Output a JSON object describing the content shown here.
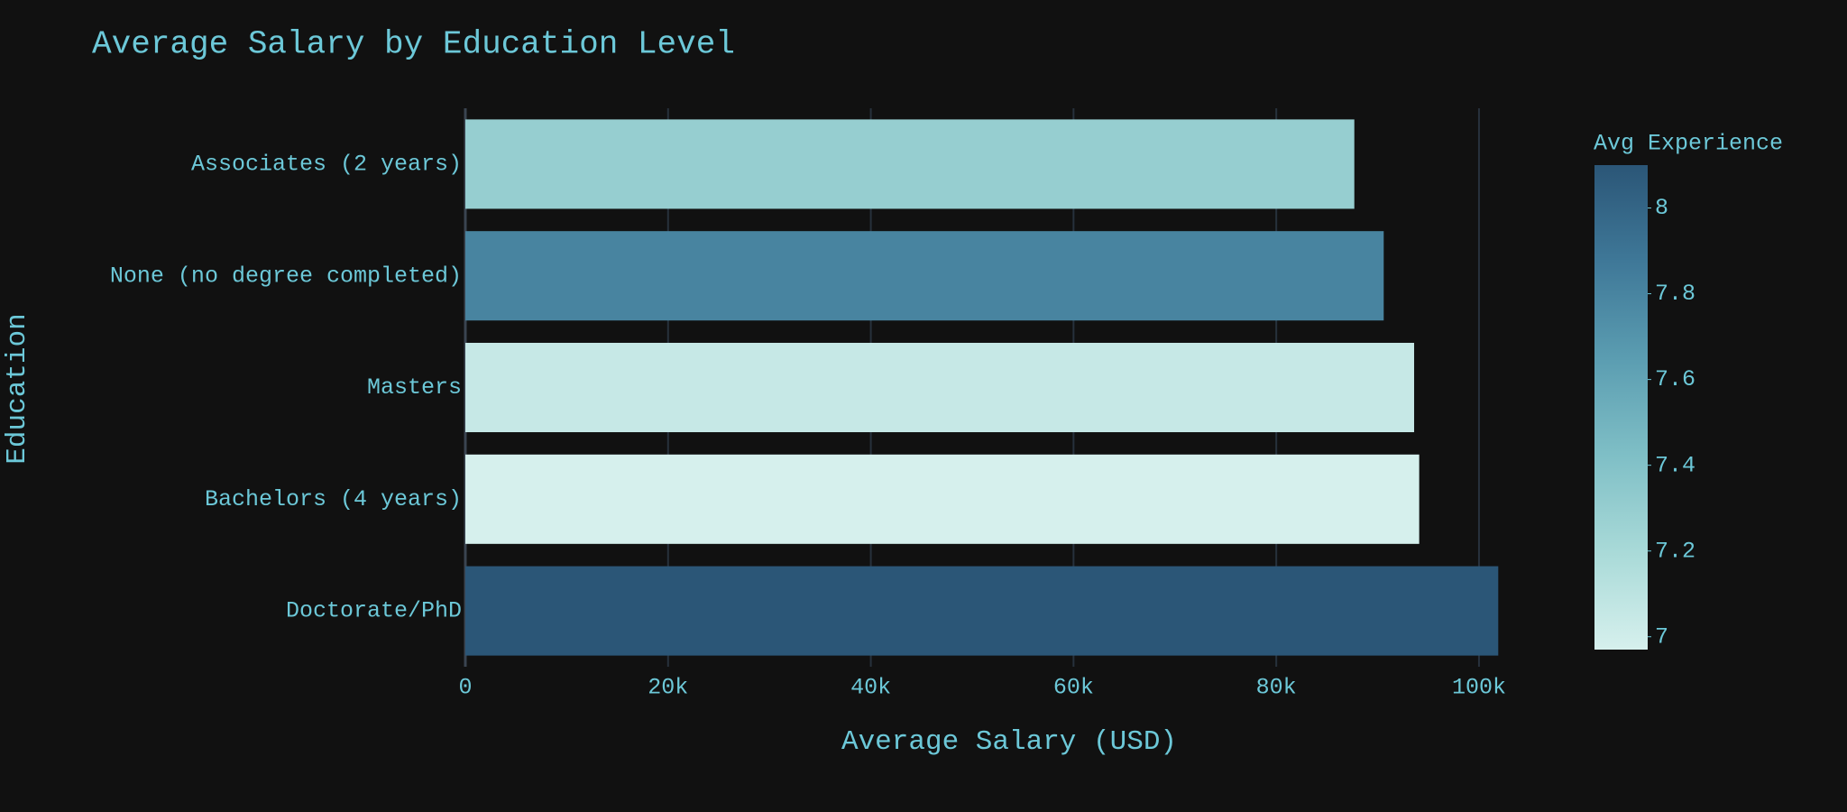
{
  "chart_data": {
    "type": "bar",
    "orientation": "horizontal",
    "title": "Average Salary by Education Level",
    "x_label": "Average Salary (USD)",
    "y_label": "Education",
    "categories": [
      "Associates (2 years)",
      "None (no degree completed)",
      "Masters",
      "Bachelors (4 years)",
      "Doctorate/PhD"
    ],
    "values": [
      87700,
      90600,
      93600,
      94100,
      101900
    ],
    "color_values": [
      7.3,
      7.8,
      7.05,
      6.97,
      8.1
    ],
    "colorbar_title": "Avg Experience",
    "colorscale": [
      "#d6f0ed",
      "#a9dad8",
      "#7fbfc6",
      "#5b9db1",
      "#3f7898",
      "#2b5677"
    ],
    "clim": [
      6.97,
      8.1
    ],
    "cticks": [
      7,
      7.2,
      7.4,
      7.6,
      7.8,
      8
    ],
    "xlim": [
      0,
      107300
    ],
    "xticks": [
      0,
      {
        "value": 20000,
        "label": "20k"
      },
      {
        "value": 40000,
        "label": "40k"
      },
      {
        "value": 60000,
        "label": "60k"
      },
      {
        "value": 80000,
        "label": "80k"
      },
      {
        "value": 100000,
        "label": "100k"
      }
    ],
    "grid": true
  }
}
